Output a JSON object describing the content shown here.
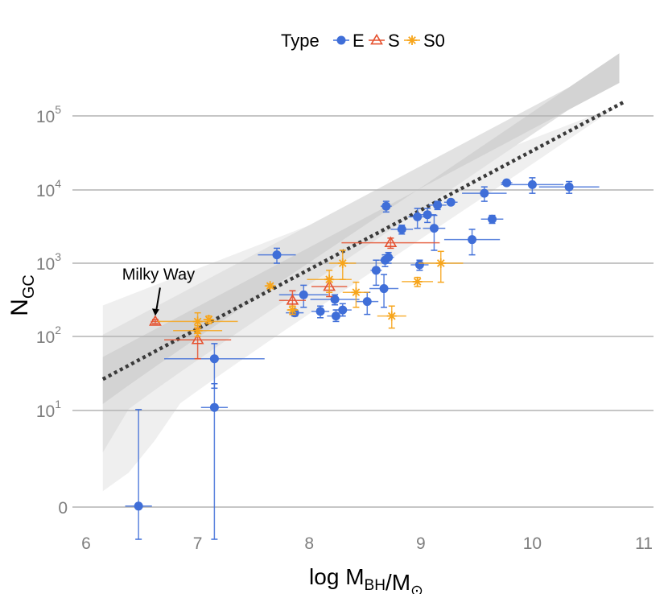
{
  "chart_data": {
    "type": "scatter",
    "title": "",
    "xlabel": "log M_BH/M_⊙",
    "ylabel": "N_GC",
    "xlim": [
      6,
      11
    ],
    "ylim_log10": [
      -0.5,
      5.6
    ],
    "y_scale": "log10(N+1) style",
    "x_ticks": [
      "6",
      "7",
      "8",
      "9",
      "10",
      "11"
    ],
    "y_ticks": [
      {
        "label": "0",
        "value": 0
      },
      {
        "label": "10",
        "exp": "1",
        "value": 10
      },
      {
        "label": "10",
        "exp": "2",
        "value": 100
      },
      {
        "label": "10",
        "exp": "3",
        "value": 1000
      },
      {
        "label": "10",
        "exp": "4",
        "value": 10000
      },
      {
        "label": "10",
        "exp": "5",
        "value": 100000
      }
    ],
    "legend": {
      "title": "Type",
      "placement": "top",
      "entries": [
        {
          "label": "E",
          "color": "#3f6ed8",
          "marker": "circle"
        },
        {
          "label": "S",
          "color": "#e5512f",
          "marker": "triangle"
        },
        {
          "label": "S0",
          "color": "#f7a51b",
          "marker": "asterisk"
        }
      ]
    },
    "fit": {
      "slope": 1.02,
      "intercept": -4.85,
      "x_range": [
        6.15,
        10.82
      ],
      "style": "dotted",
      "color": "#3a3a3a"
    },
    "bands": [
      {
        "name": "outer",
        "half_width_dex": 1.0,
        "color": "#efefef"
      },
      {
        "name": "middle",
        "half_width_dex": 0.6,
        "color": "#e2e2e2"
      },
      {
        "name": "inner",
        "half_width_dex": 0.3,
        "color": "#d3d3d3"
      }
    ],
    "annotations": [
      {
        "text": "Milky Way",
        "x": 6.62,
        "y": 160
      }
    ],
    "series": [
      {
        "name": "E",
        "marker": "circle",
        "color": "#3f6ed8",
        "points": [
          {
            "x": 6.47,
            "y": 0.1,
            "xerr": 0.12,
            "ylo": -0.5,
            "yhi": 10.3
          },
          {
            "x": 7.15,
            "y": 50,
            "xerr": 0.45,
            "ylo": 20,
            "yhi": 80
          },
          {
            "x": 7.15,
            "y": 11,
            "xerr": 0.12,
            "ylo": -0.5,
            "yhi": 23
          },
          {
            "x": 7.71,
            "y": 1300,
            "xerr": 0.17,
            "ylo": 1000,
            "yhi": 1600
          },
          {
            "x": 7.87,
            "y": 210,
            "xerr": 0.08,
            "ylo": 190,
            "yhi": 230
          },
          {
            "x": 7.95,
            "y": 370,
            "xerr": 0.22,
            "ylo": 250,
            "yhi": 500
          },
          {
            "x": 8.1,
            "y": 220,
            "xerr": 0.08,
            "ylo": 180,
            "yhi": 260
          },
          {
            "x": 8.23,
            "y": 320,
            "xerr": 0.22,
            "ylo": 270,
            "yhi": 370
          },
          {
            "x": 8.24,
            "y": 190,
            "xerr": 0.08,
            "ylo": 160,
            "yhi": 230
          },
          {
            "x": 8.3,
            "y": 230,
            "xerr": 0.08,
            "ylo": 190,
            "yhi": 280
          },
          {
            "x": 8.52,
            "y": 300,
            "xerr": 0.1,
            "ylo": 200,
            "yhi": 400
          },
          {
            "x": 8.6,
            "y": 800,
            "xerr": 0.05,
            "ylo": 500,
            "yhi": 1100
          },
          {
            "x": 8.67,
            "y": 450,
            "xerr": 0.13,
            "ylo": 250,
            "yhi": 700
          },
          {
            "x": 8.68,
            "y": 1100,
            "xerr": 0.05,
            "ylo": 900,
            "yhi": 1300
          },
          {
            "x": 8.71,
            "y": 1200,
            "xerr": 0.05,
            "ylo": 1000,
            "yhi": 1400
          },
          {
            "x": 8.69,
            "y": 6000,
            "xerr": 0.05,
            "ylo": 5000,
            "yhi": 7000
          },
          {
            "x": 8.83,
            "y": 2900,
            "xerr": 0.1,
            "ylo": 2500,
            "yhi": 3300
          },
          {
            "x": 8.97,
            "y": 4300,
            "xerr": 0.08,
            "ylo": 3000,
            "yhi": 5600
          },
          {
            "x": 8.99,
            "y": 950,
            "xerr": 0.08,
            "ylo": 800,
            "yhi": 1100
          },
          {
            "x": 9.06,
            "y": 4600,
            "xerr": 0.08,
            "ylo": 3600,
            "yhi": 5600
          },
          {
            "x": 9.12,
            "y": 3000,
            "xerr": 0.1,
            "ylo": 1500,
            "yhi": 4500
          },
          {
            "x": 9.15,
            "y": 6200,
            "xerr": 0.08,
            "ylo": 5400,
            "yhi": 7000
          },
          {
            "x": 9.27,
            "y": 6800,
            "xerr": 0.06,
            "ylo": 6400,
            "yhi": 7200
          },
          {
            "x": 9.46,
            "y": 2100,
            "xerr": 0.25,
            "ylo": 1300,
            "yhi": 2900
          },
          {
            "x": 9.57,
            "y": 9000,
            "xerr": 0.2,
            "ylo": 7000,
            "yhi": 11000
          },
          {
            "x": 9.64,
            "y": 4000,
            "xerr": 0.1,
            "ylo": 3500,
            "yhi": 4500
          },
          {
            "x": 9.77,
            "y": 12500,
            "xerr": 0.05,
            "ylo": 11500,
            "yhi": 13500
          },
          {
            "x": 10.0,
            "y": 11800,
            "xerr": 0.28,
            "ylo": 9000,
            "yhi": 14600
          },
          {
            "x": 10.33,
            "y": 11000,
            "xerr": 0.27,
            "ylo": 9000,
            "yhi": 13000
          }
        ]
      },
      {
        "name": "S",
        "marker": "triangle",
        "color": "#e5512f",
        "points": [
          {
            "x": 6.62,
            "y": 160,
            "xerr": 0.04,
            "ylo": 150,
            "yhi": 170
          },
          {
            "x": 7.0,
            "y": 90,
            "xerr": 0.3,
            "ylo": 50,
            "yhi": 130
          },
          {
            "x": 7.85,
            "y": 310,
            "xerr": 0.12,
            "ylo": 200,
            "yhi": 420
          },
          {
            "x": 8.18,
            "y": 480,
            "xerr": 0.16,
            "ylo": 350,
            "yhi": 610
          },
          {
            "x": 8.73,
            "y": 1900,
            "xerr": 0.44,
            "ylo": 1600,
            "yhi": 2200
          }
        ]
      },
      {
        "name": "S0",
        "marker": "asterisk",
        "color": "#f7a51b",
        "points": [
          {
            "x": 7.0,
            "y": 160,
            "xerr": 0.36,
            "ylo": 110,
            "yhi": 210
          },
          {
            "x": 7.1,
            "y": 170,
            "xerr": 0.05,
            "ylo": 150,
            "yhi": 190
          },
          {
            "x": 7.0,
            "y": 120,
            "xerr": 0.22,
            "ylo": 100,
            "yhi": 140
          },
          {
            "x": 7.65,
            "y": 490,
            "xerr": 0.05,
            "ylo": 460,
            "yhi": 520
          },
          {
            "x": 7.85,
            "y": 230,
            "xerr": 0.05,
            "ylo": 200,
            "yhi": 260
          },
          {
            "x": 8.18,
            "y": 600,
            "xerr": 0.2,
            "ylo": 400,
            "yhi": 800
          },
          {
            "x": 8.3,
            "y": 1000,
            "xerr": 0.12,
            "ylo": 600,
            "yhi": 1500
          },
          {
            "x": 8.42,
            "y": 400,
            "xerr": 0.12,
            "ylo": 250,
            "yhi": 550
          },
          {
            "x": 8.74,
            "y": 190,
            "xerr": 0.13,
            "ylo": 130,
            "yhi": 260
          },
          {
            "x": 8.97,
            "y": 560,
            "xerr": 0.14,
            "ylo": 480,
            "yhi": 640
          },
          {
            "x": 9.18,
            "y": 1000,
            "xerr": 0.2,
            "ylo": 550,
            "yhi": 1450
          }
        ]
      }
    ]
  }
}
